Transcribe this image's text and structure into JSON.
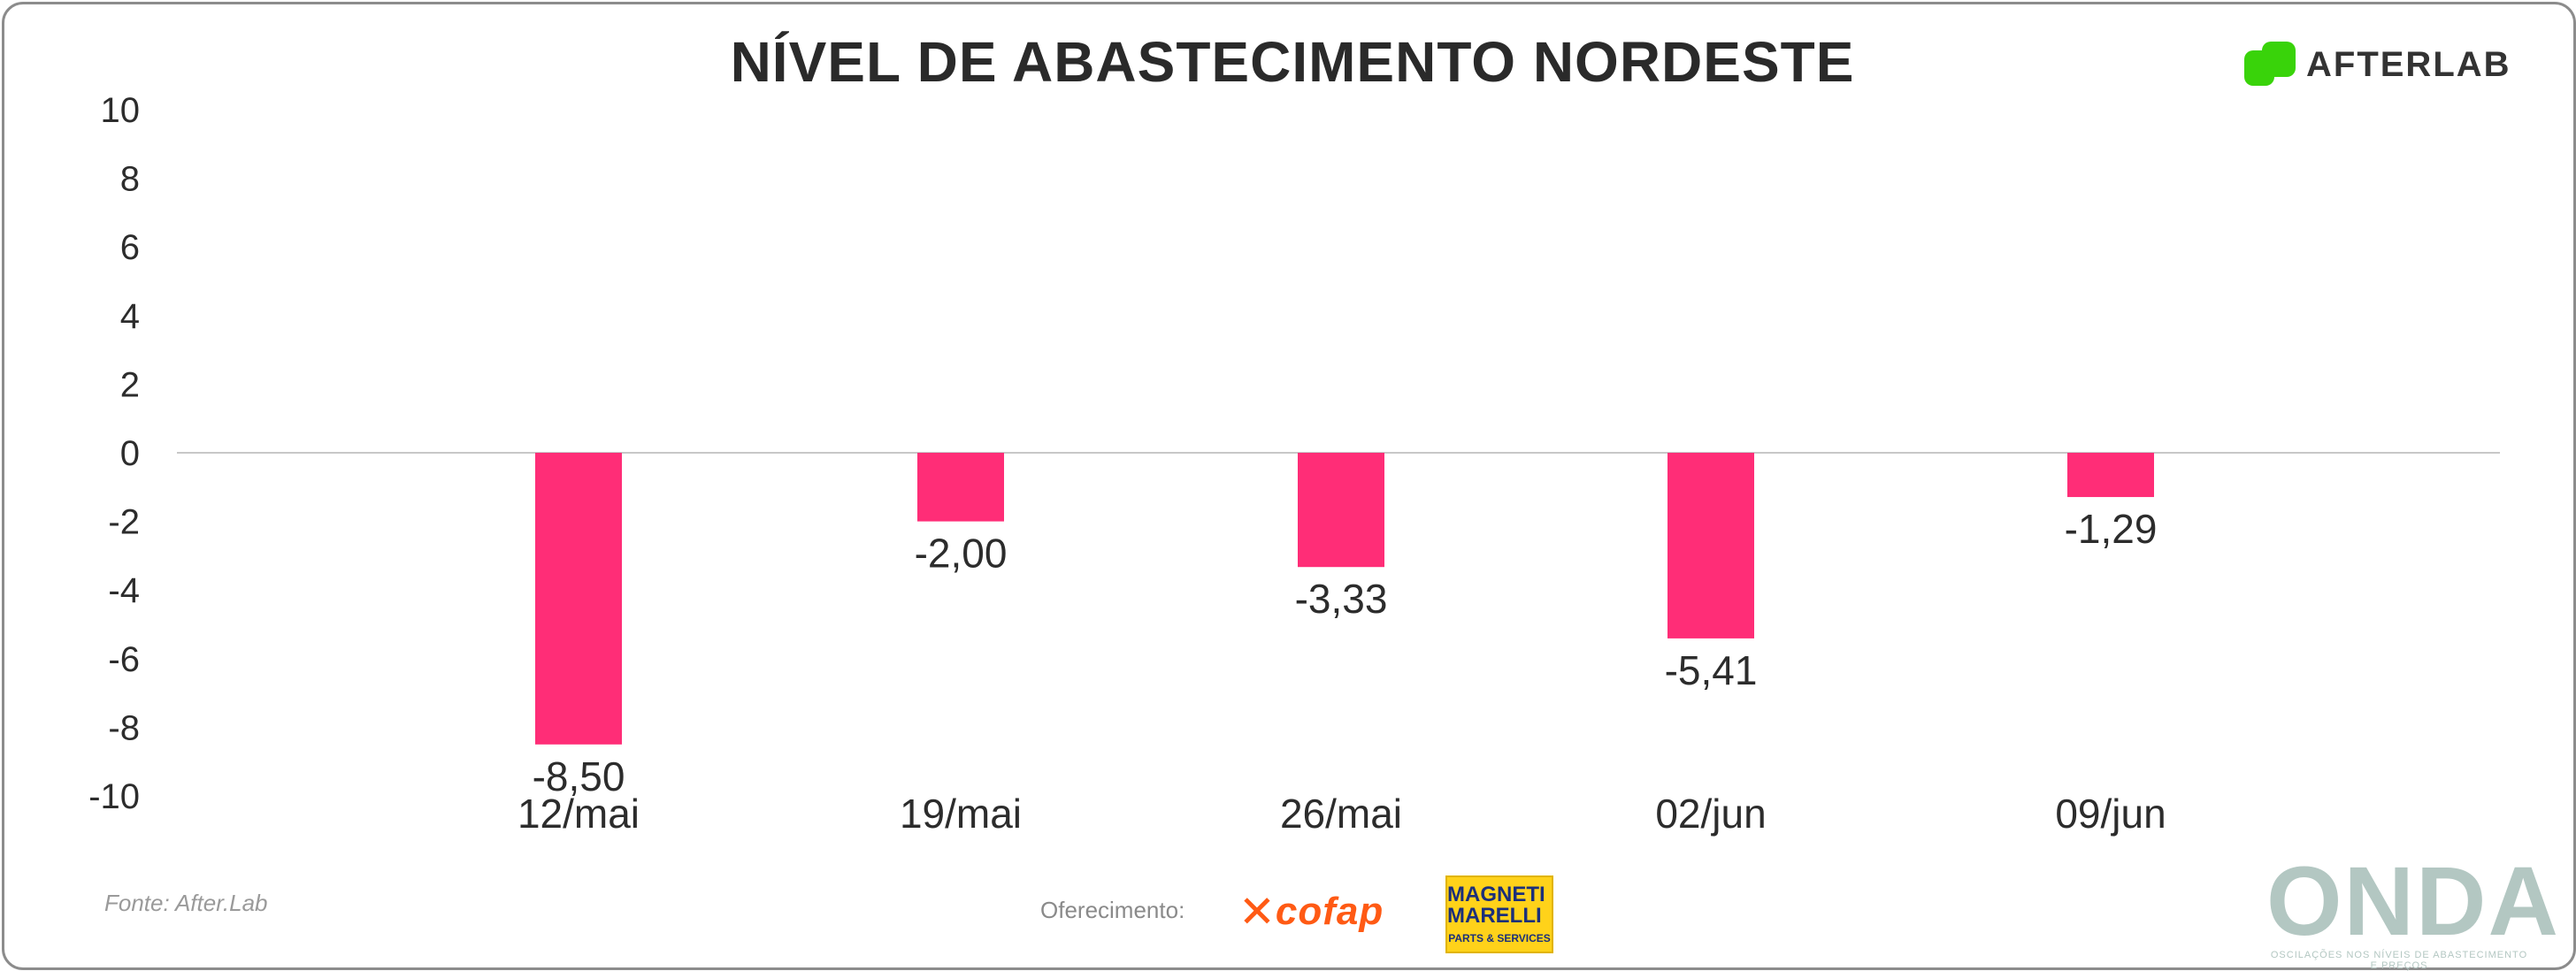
{
  "chart_data": {
    "type": "bar",
    "title": "NÍVEL DE ABASTECIMENTO NORDESTE",
    "categories": [
      "12/mai",
      "19/mai",
      "26/mai",
      "02/jun",
      "09/jun"
    ],
    "values": [
      -8.5,
      -2.0,
      -3.33,
      -5.41,
      -1.29
    ],
    "data_labels": [
      "-8,50",
      "-2,00",
      "-3,33",
      "-5,41",
      "-1,29"
    ],
    "ylim": [
      -10,
      10
    ],
    "yticks": [
      10,
      8,
      6,
      4,
      2,
      0,
      -2,
      -4,
      -6,
      -8,
      -10
    ],
    "xlabel": "",
    "ylabel": "",
    "bar_color": "#ff2d77",
    "zero_line": true,
    "grid": false
  },
  "header": {
    "title": "NÍVEL DE ABASTECIMENTO NORDESTE",
    "logo_text": "AFTERLAB",
    "logo_color": "#39d30a"
  },
  "footer": {
    "source": "Fonte: After.Lab",
    "sponsor_label": "Oferecimento:",
    "sponsor1_mark": "✕",
    "sponsor1": "cofap",
    "sponsor2_top": "MAGNETI MARELLI",
    "sponsor2_bottom": "PARTS & SERVICES",
    "brand": "ONDA",
    "brand_tagline": "OSCILAÇÕES NOS NÍVEIS DE ABASTECIMENTO E PREÇOS"
  }
}
